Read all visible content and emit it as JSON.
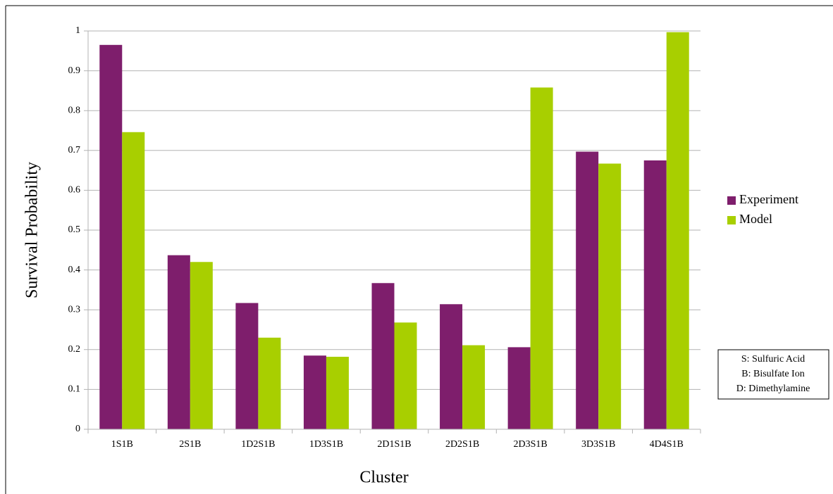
{
  "chart_data": {
    "type": "bar",
    "x_label": "Cluster",
    "y_label": "Survival Probability",
    "categories": [
      "1S1B",
      "2S1B",
      "1D2S1B",
      "1D3S1B",
      "2D1S1B",
      "2D2S1B",
      "2D3S1B",
      "3D3S1B",
      "4D4S1B"
    ],
    "series": [
      {
        "name": "Experiment",
        "color": "#7e1e6c",
        "values": [
          0.965,
          0.437,
          0.317,
          0.185,
          0.367,
          0.314,
          0.206,
          0.697,
          0.675
        ]
      },
      {
        "name": "Model",
        "color": "#a8cf00",
        "values": [
          0.746,
          0.42,
          0.23,
          0.182,
          0.268,
          0.211,
          0.858,
          0.667,
          0.997
        ]
      }
    ],
    "ylim": [
      0,
      1
    ],
    "yticks": [
      0,
      0.1,
      0.2,
      0.3,
      0.4,
      0.5,
      0.6,
      0.7,
      0.8,
      0.9,
      1
    ],
    "grid": true,
    "legend": "right",
    "annotations": [
      "S: Sulfuric Acid",
      "B: Bisulfate Ion",
      "D: Dimethylamine"
    ]
  }
}
